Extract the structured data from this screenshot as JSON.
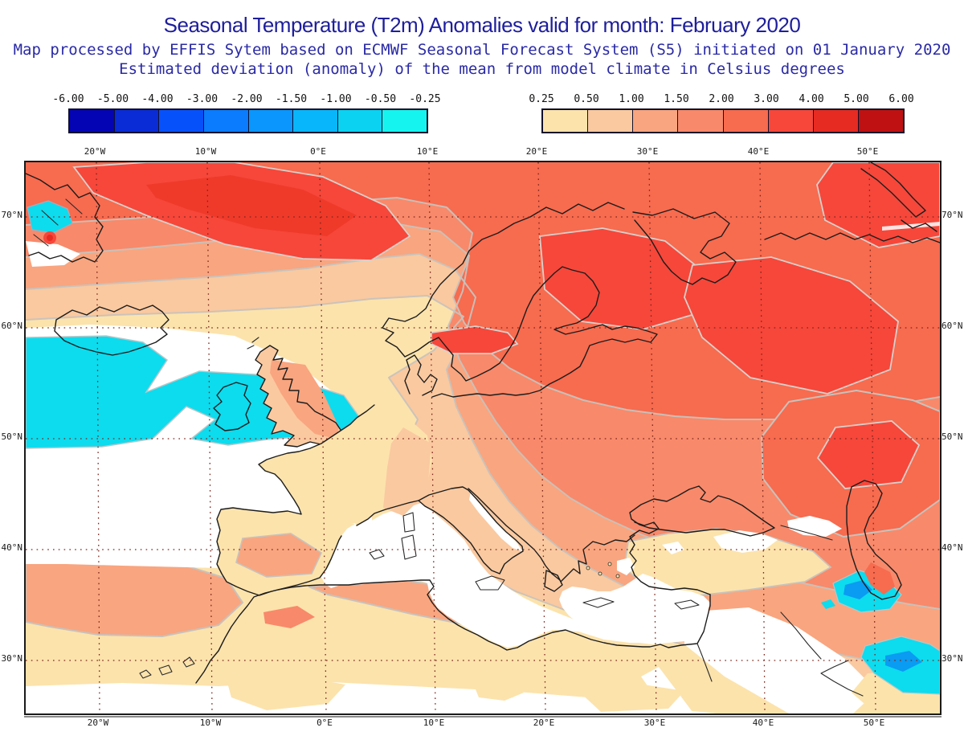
{
  "header": {
    "title": "Seasonal Temperature (T2m) Anomalies valid for month: February 2020",
    "subtitle1": "Map processed by EFFIS Sytem based on ECMWF Seasonal Forecast System (S5) initiated on 01 January 2020",
    "subtitle2": "Estimated deviation (anomaly) of the mean from model climate in Celsius degrees"
  },
  "colorbars": {
    "negative": {
      "tick_labels": [
        "-6.00",
        "-5.00",
        "-4.00",
        "-3.00",
        "-2.00",
        "-1.50",
        "-1.00",
        "-0.50",
        "-0.25"
      ],
      "cell_colors": [
        "#0404b4",
        "#0a2cd6",
        "#0751fb",
        "#0a7cfd",
        "#0a96fc",
        "#08b6fc",
        "#0bd2f1",
        "#16f4ef"
      ]
    },
    "positive": {
      "tick_labels": [
        "0.25",
        "0.50",
        "1.00",
        "1.50",
        "2.00",
        "3.00",
        "4.00",
        "5.00",
        "6.00"
      ],
      "cell_colors": [
        "#fce3ac",
        "#fac9a0",
        "#f9a57f",
        "#f8896a",
        "#f76b4f",
        "#f6473a",
        "#e62b22",
        "#bf1111"
      ]
    }
  },
  "map": {
    "lon_labels": [
      "20°W",
      "10°W",
      "0°E",
      "10°E",
      "20°E",
      "30°E",
      "40°E",
      "50°E"
    ],
    "lat_labels": [
      "70°N",
      "60°N",
      "50°N",
      "40°N",
      "30°N"
    ]
  },
  "palette": {
    "title-color": "#1e1e9c",
    "subtitle-color": "#2a2aa6",
    "c1": "#fce3ac",
    "c2": "#fac9a0",
    "c3": "#f9a57f",
    "c4": "#f8896a",
    "c5": "#f76b4f",
    "c6": "#f6473a",
    "c6deep": "#ef3a2a",
    "c7": "#e62b22",
    "cyan": "#0cdcee",
    "blue-spot": "#0a9bf2",
    "sea-white": "#ffffff",
    "contour-gray": "#c8c2bc",
    "grid-color": "#7a241a"
  }
}
